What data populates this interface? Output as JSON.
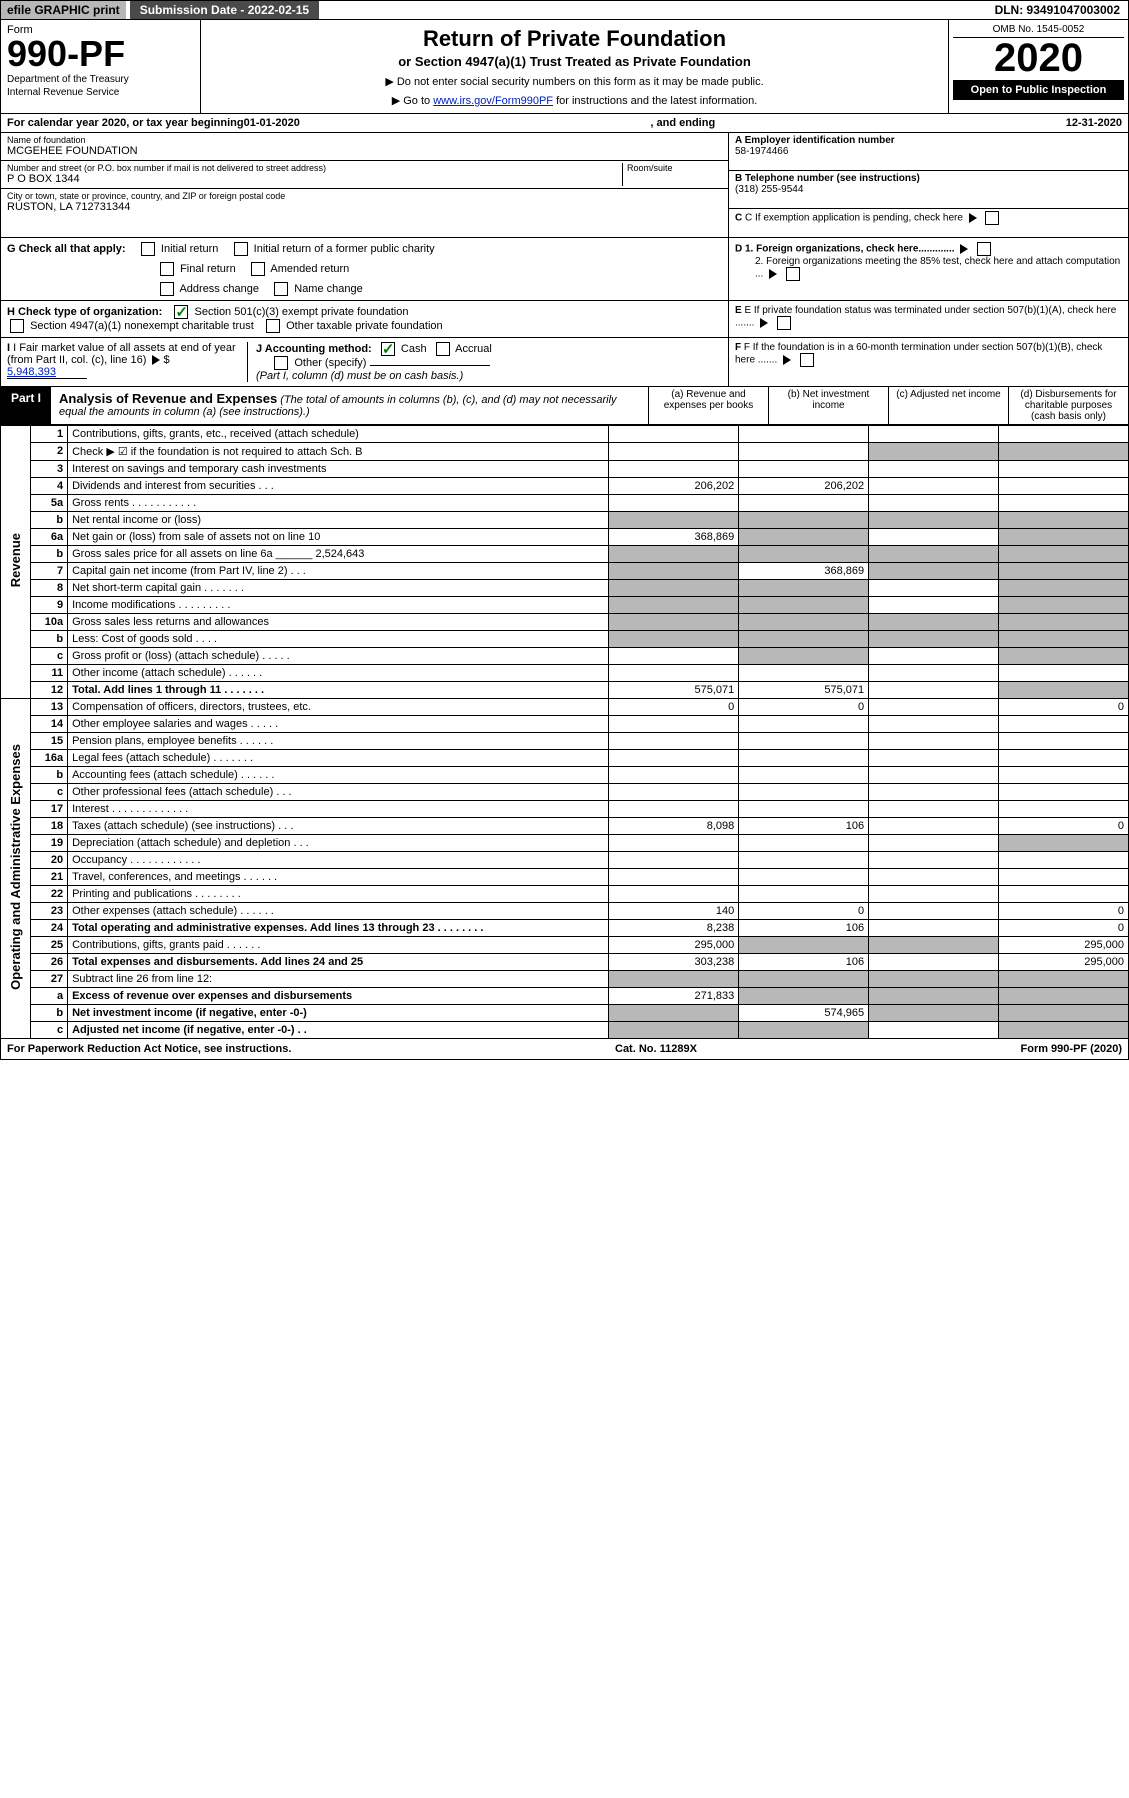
{
  "topbar": {
    "efile": "efile GRAPHIC print",
    "submission_label": "Submission Date - 2022-02-15",
    "dln": "DLN: 93491047003002"
  },
  "header": {
    "form_label": "Form",
    "form_number": "990-PF",
    "dept1": "Department of the Treasury",
    "dept2": "Internal Revenue Service",
    "title": "Return of Private Foundation",
    "subtitle": "or Section 4947(a)(1) Trust Treated as Private Foundation",
    "inst1": "▶ Do not enter social security numbers on this form as it may be made public.",
    "inst2_pre": "▶ Go to ",
    "inst2_link": "www.irs.gov/Form990PF",
    "inst2_post": " for instructions and the latest information.",
    "omb": "OMB No. 1545-0052",
    "year": "2020",
    "open": "Open to Public Inspection"
  },
  "calendar": {
    "pre": "For calendar year 2020, or tax year beginning ",
    "start": "01-01-2020",
    "mid": ", and ending ",
    "end": "12-31-2020"
  },
  "info": {
    "name_label": "Name of foundation",
    "name": "MCGEHEE FOUNDATION",
    "addr_label": "Number and street (or P.O. box number if mail is not delivered to street address)",
    "addr": "P O BOX 1344",
    "room_label": "Room/suite",
    "city_label": "City or town, state or province, country, and ZIP or foreign postal code",
    "city": "RUSTON, LA  712731344",
    "ein_label": "A Employer identification number",
    "ein": "58-1974466",
    "phone_label": "B Telephone number (see instructions)",
    "phone": "(318) 255-9544",
    "c_label": "C  If exemption application is pending, check here",
    "d1": "D 1. Foreign organizations, check here.............",
    "d2": "2. Foreign organizations meeting the 85% test, check here and attach computation ...",
    "e_label": "E  If private foundation status was terminated under section 507(b)(1)(A), check here .......",
    "f_label": "F  If the foundation is in a 60-month termination under section 507(b)(1)(B), check here .......",
    "g_label": "G Check all that apply:",
    "g_initial": "Initial return",
    "g_initial_former": "Initial return of a former public charity",
    "g_final": "Final return",
    "g_amended": "Amended return",
    "g_address": "Address change",
    "g_name": "Name change",
    "h_label": "H Check type of organization:",
    "h_501": "Section 501(c)(3) exempt private foundation",
    "h_4947": "Section 4947(a)(1) nonexempt charitable trust",
    "h_other": "Other taxable private foundation",
    "i_label": "I Fair market value of all assets at end of year (from Part II, col. (c), line 16)",
    "i_value": "5,948,393",
    "j_label": "J Accounting method:",
    "j_cash": "Cash",
    "j_accrual": "Accrual",
    "j_other": "Other (specify)",
    "j_note": "(Part I, column (d) must be on cash basis.)"
  },
  "part1": {
    "label": "Part I",
    "title": "Analysis of Revenue and Expenses",
    "note": "(The total of amounts in columns (b), (c), and (d) may not necessarily equal the amounts in column (a) (see instructions).)",
    "col_a": "(a) Revenue and expenses per books",
    "col_b": "(b) Net investment income",
    "col_c": "(c) Adjusted net income",
    "col_d": "(d) Disbursements for charitable purposes (cash basis only)"
  },
  "side_labels": {
    "revenue": "Revenue",
    "expenses": "Operating and Administrative Expenses"
  },
  "lines": [
    {
      "n": "1",
      "desc": "Contributions, gifts, grants, etc., received (attach schedule)",
      "a": "",
      "b": "",
      "c": "",
      "d": ""
    },
    {
      "n": "2",
      "desc": "Check ▶ ☑ if the foundation is not required to attach Sch. B",
      "a": "",
      "b": "",
      "c": "",
      "d": "",
      "c_shaded": true,
      "d_shaded": true
    },
    {
      "n": "3",
      "desc": "Interest on savings and temporary cash investments",
      "a": "",
      "b": "",
      "c": "",
      "d": ""
    },
    {
      "n": "4",
      "desc": "Dividends and interest from securities   .   .   .",
      "a": "206,202",
      "b": "206,202",
      "c": "",
      "d": ""
    },
    {
      "n": "5a",
      "desc": "Gross rents   .   .   .   .   .   .   .   .   .   .   .",
      "a": "",
      "b": "",
      "c": "",
      "d": ""
    },
    {
      "n": "b",
      "desc": "Net rental income or (loss)",
      "a": "",
      "b": "",
      "c": "",
      "d": "",
      "a_shaded": true,
      "b_shaded": true,
      "c_shaded": true,
      "d_shaded": true
    },
    {
      "n": "6a",
      "desc": "Net gain or (loss) from sale of assets not on line 10",
      "a": "368,869",
      "b": "",
      "c": "",
      "d": "",
      "b_shaded": true,
      "d_shaded": true
    },
    {
      "n": "b",
      "desc": "Gross sales price for all assets on line 6a ______ 2,524,643",
      "a": "",
      "b": "",
      "c": "",
      "d": "",
      "a_shaded": true,
      "b_shaded": true,
      "c_shaded": true,
      "d_shaded": true
    },
    {
      "n": "7",
      "desc": "Capital gain net income (from Part IV, line 2)   .   .   .",
      "a": "",
      "b": "368,869",
      "c": "",
      "d": "",
      "a_shaded": true,
      "c_shaded": true,
      "d_shaded": true
    },
    {
      "n": "8",
      "desc": "Net short-term capital gain   .   .   .   .   .   .   .",
      "a": "",
      "b": "",
      "c": "",
      "d": "",
      "a_shaded": true,
      "b_shaded": true,
      "d_shaded": true
    },
    {
      "n": "9",
      "desc": "Income modifications   .   .   .   .   .   .   .   .   .",
      "a": "",
      "b": "",
      "c": "",
      "d": "",
      "a_shaded": true,
      "b_shaded": true,
      "d_shaded": true
    },
    {
      "n": "10a",
      "desc": "Gross sales less returns and allowances",
      "a": "",
      "b": "",
      "c": "",
      "d": "",
      "a_shaded": true,
      "b_shaded": true,
      "c_shaded": true,
      "d_shaded": true
    },
    {
      "n": "b",
      "desc": "Less: Cost of goods sold   .   .   .   .",
      "a": "",
      "b": "",
      "c": "",
      "d": "",
      "a_shaded": true,
      "b_shaded": true,
      "c_shaded": true,
      "d_shaded": true
    },
    {
      "n": "c",
      "desc": "Gross profit or (loss) (attach schedule)   .   .   .   .   .",
      "a": "",
      "b": "",
      "c": "",
      "d": "",
      "b_shaded": true,
      "d_shaded": true
    },
    {
      "n": "11",
      "desc": "Other income (attach schedule)   .   .   .   .   .   .",
      "a": "",
      "b": "",
      "c": "",
      "d": ""
    },
    {
      "n": "12",
      "desc": "Total. Add lines 1 through 11   .   .   .   .   .   .   .",
      "a": "575,071",
      "b": "575,071",
      "c": "",
      "d": "",
      "bold": true,
      "d_shaded": true
    },
    {
      "n": "13",
      "desc": "Compensation of officers, directors, trustees, etc.",
      "a": "0",
      "b": "0",
      "c": "",
      "d": "0"
    },
    {
      "n": "14",
      "desc": "Other employee salaries and wages   .   .   .   .   .",
      "a": "",
      "b": "",
      "c": "",
      "d": ""
    },
    {
      "n": "15",
      "desc": "Pension plans, employee benefits   .   .   .   .   .   .",
      "a": "",
      "b": "",
      "c": "",
      "d": ""
    },
    {
      "n": "16a",
      "desc": "Legal fees (attach schedule)   .   .   .   .   .   .   .",
      "a": "",
      "b": "",
      "c": "",
      "d": ""
    },
    {
      "n": "b",
      "desc": "Accounting fees (attach schedule)   .   .   .   .   .   .",
      "a": "",
      "b": "",
      "c": "",
      "d": ""
    },
    {
      "n": "c",
      "desc": "Other professional fees (attach schedule)   .   .   .",
      "a": "",
      "b": "",
      "c": "",
      "d": ""
    },
    {
      "n": "17",
      "desc": "Interest   .   .   .   .   .   .   .   .   .   .   .   .   .",
      "a": "",
      "b": "",
      "c": "",
      "d": ""
    },
    {
      "n": "18",
      "desc": "Taxes (attach schedule) (see instructions)   .   .   .",
      "a": "8,098",
      "b": "106",
      "c": "",
      "d": "0"
    },
    {
      "n": "19",
      "desc": "Depreciation (attach schedule) and depletion   .   .   .",
      "a": "",
      "b": "",
      "c": "",
      "d": "",
      "d_shaded": true
    },
    {
      "n": "20",
      "desc": "Occupancy   .   .   .   .   .   .   .   .   .   .   .   .",
      "a": "",
      "b": "",
      "c": "",
      "d": ""
    },
    {
      "n": "21",
      "desc": "Travel, conferences, and meetings   .   .   .   .   .   .",
      "a": "",
      "b": "",
      "c": "",
      "d": ""
    },
    {
      "n": "22",
      "desc": "Printing and publications   .   .   .   .   .   .   .   .",
      "a": "",
      "b": "",
      "c": "",
      "d": ""
    },
    {
      "n": "23",
      "desc": "Other expenses (attach schedule)   .   .   .   .   .   .",
      "a": "140",
      "b": "0",
      "c": "",
      "d": "0"
    },
    {
      "n": "24",
      "desc": "Total operating and administrative expenses. Add lines 13 through 23   .   .   .   .   .   .   .   .",
      "a": "8,238",
      "b": "106",
      "c": "",
      "d": "0",
      "bold": true
    },
    {
      "n": "25",
      "desc": "Contributions, gifts, grants paid   .   .   .   .   .   .",
      "a": "295,000",
      "b": "",
      "c": "",
      "d": "295,000",
      "b_shaded": true,
      "c_shaded": true
    },
    {
      "n": "26",
      "desc": "Total expenses and disbursements. Add lines 24 and 25",
      "a": "303,238",
      "b": "106",
      "c": "",
      "d": "295,000",
      "bold": true
    },
    {
      "n": "27",
      "desc": "Subtract line 26 from line 12:",
      "a": "",
      "b": "",
      "c": "",
      "d": "",
      "a_shaded": true,
      "b_shaded": true,
      "c_shaded": true,
      "d_shaded": true
    },
    {
      "n": "a",
      "desc": "Excess of revenue over expenses and disbursements",
      "a": "271,833",
      "b": "",
      "c": "",
      "d": "",
      "bold": true,
      "b_shaded": true,
      "c_shaded": true,
      "d_shaded": true
    },
    {
      "n": "b",
      "desc": "Net investment income (if negative, enter -0-)",
      "a": "",
      "b": "574,965",
      "c": "",
      "d": "",
      "bold": true,
      "a_shaded": true,
      "c_shaded": true,
      "d_shaded": true
    },
    {
      "n": "c",
      "desc": "Adjusted net income (if negative, enter -0-)   .   .",
      "a": "",
      "b": "",
      "c": "",
      "d": "",
      "bold": true,
      "a_shaded": true,
      "b_shaded": true,
      "d_shaded": true
    }
  ],
  "footer": {
    "left": "For Paperwork Reduction Act Notice, see instructions.",
    "mid": "Cat. No. 11289X",
    "right": "Form 990-PF (2020)"
  }
}
